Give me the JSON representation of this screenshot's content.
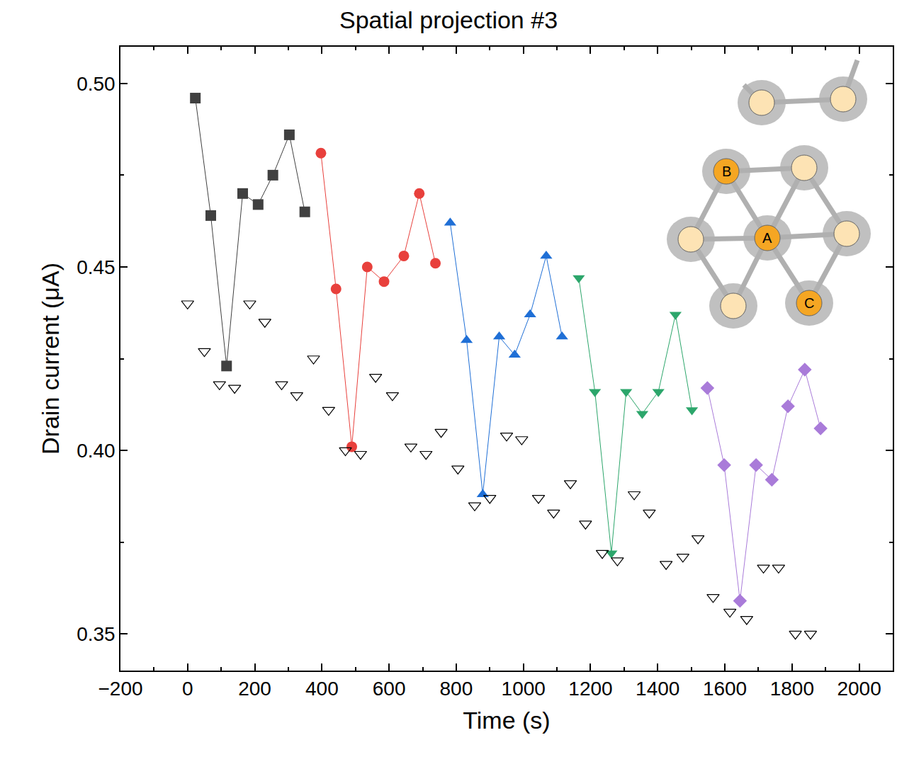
{
  "chart_data": {
    "type": "line",
    "title": "Spatial projection #3",
    "x_label": "Time (s)",
    "y_label": "Drain current (μA)",
    "xlim": [
      -200,
      2100
    ],
    "ylim": [
      0.34,
      0.51
    ],
    "xticks": [
      {
        "value": -200,
        "label": "−200"
      },
      0,
      200,
      400,
      600,
      800,
      1000,
      1200,
      1400,
      1600,
      1800,
      2000
    ],
    "yticks": [
      0.35,
      {
        "value": 0.4,
        "label": "0.40"
      },
      0.45,
      {
        "value": 0.5,
        "label": "0.50"
      }
    ],
    "grid": false,
    "annotations": [
      {
        "text": "A"
      },
      {
        "text": "B"
      },
      {
        "text": "C"
      }
    ],
    "series": [
      {
        "type": "line",
        "color": "#404040",
        "marker": "square",
        "x": [
          23,
          69,
          116,
          164,
          210,
          254,
          303,
          349
        ],
        "values": [
          0.496,
          0.464,
          0.423,
          0.47,
          0.467,
          0.475,
          0.486,
          0.465
        ]
      },
      {
        "type": "line",
        "color": "#e8403c",
        "marker": "circle",
        "x": [
          397,
          442,
          489,
          535,
          585,
          644,
          690,
          738
        ],
        "values": [
          0.481,
          0.444,
          0.401,
          0.45,
          0.446,
          0.453,
          0.47,
          0.451
        ]
      },
      {
        "type": "line",
        "color": "#1f6fd6",
        "marker": "triangle-up",
        "x": [
          782,
          831,
          879,
          928,
          974,
          1020,
          1068,
          1115
        ],
        "values": [
          0.462,
          0.43,
          0.388,
          0.431,
          0.426,
          0.437,
          0.453,
          0.431
        ]
      },
      {
        "type": "line",
        "color": "#2ca66b",
        "marker": "triangle-down",
        "x": [
          1165,
          1213,
          1262,
          1306,
          1354,
          1402,
          1453,
          1502
        ],
        "values": [
          0.447,
          0.416,
          0.372,
          0.416,
          0.41,
          0.416,
          0.437,
          0.411
        ]
      },
      {
        "type": "line",
        "color": "#a97bd9",
        "marker": "diamond",
        "x": [
          1548,
          1598,
          1645,
          1693,
          1740,
          1788,
          1838,
          1885
        ],
        "values": [
          0.417,
          0.396,
          0.359,
          0.396,
          0.392,
          0.412,
          0.422,
          0.406
        ]
      },
      {
        "type": "scatter",
        "color": "#000000",
        "marker": "triangle-down-open",
        "x": [
          0,
          50,
          95,
          140,
          185,
          230,
          280,
          325,
          375,
          420,
          470,
          515,
          560,
          610,
          665,
          710,
          755,
          805,
          855,
          900,
          950,
          995,
          1045,
          1090,
          1140,
          1185,
          1235,
          1280,
          1330,
          1375,
          1425,
          1475,
          1520,
          1565,
          1615,
          1665,
          1715,
          1760,
          1810,
          1855
        ],
        "values": [
          0.44,
          0.427,
          0.418,
          0.417,
          0.44,
          0.435,
          0.418,
          0.415,
          0.425,
          0.411,
          0.4,
          0.399,
          0.42,
          0.415,
          0.401,
          0.399,
          0.405,
          0.395,
          0.385,
          0.387,
          0.404,
          0.403,
          0.387,
          0.383,
          0.391,
          0.38,
          0.372,
          0.37,
          0.388,
          0.383,
          0.369,
          0.371,
          0.376,
          0.36,
          0.356,
          0.354,
          0.368,
          0.368,
          0.35,
          0.35
        ]
      }
    ]
  }
}
